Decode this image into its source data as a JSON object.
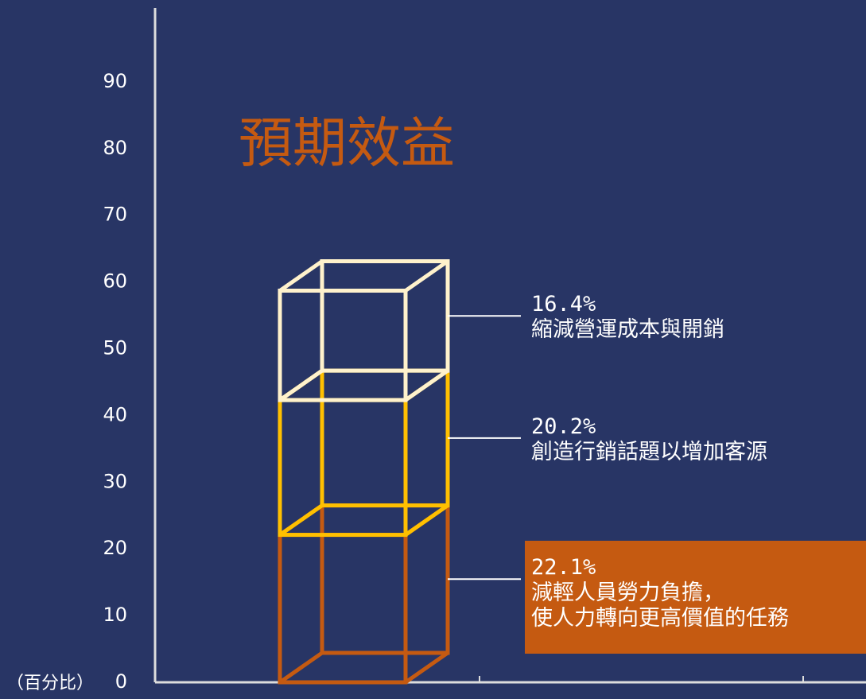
{
  "chart_data": {
    "type": "stacked-box",
    "title": "預期效益",
    "ylabel": "（百分比）",
    "ylim": [
      0,
      100
    ],
    "yticks": [
      0,
      10,
      20,
      30,
      40,
      50,
      60,
      70,
      80,
      90
    ],
    "series": [
      {
        "name": "減輕人員勞力負擔，\n使人力轉向更高價值的任務",
        "color": "#c55a11",
        "values": [
          22.1
        ],
        "value_labels": [
          "22.1%"
        ]
      },
      {
        "name": "創造行銷話題以增加客源",
        "color": "#ffc000",
        "values": [
          20.2
        ],
        "value_labels": [
          "20.2%"
        ]
      },
      {
        "name": "縮減營運成本與開銷",
        "color": "#fff2cc",
        "values": [
          16.4
        ],
        "value_labels": [
          "16.4%"
        ]
      }
    ]
  }
}
